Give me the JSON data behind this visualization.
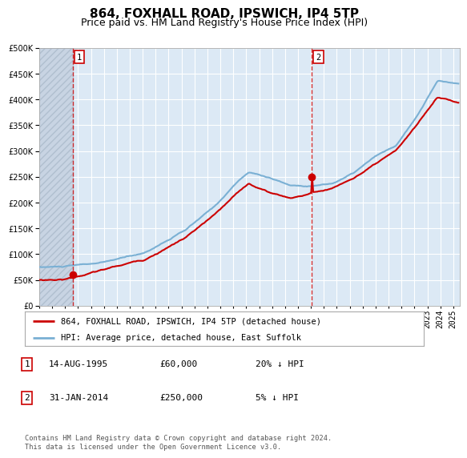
{
  "title": "864, FOXHALL ROAD, IPSWICH, IP4 5TP",
  "subtitle": "Price paid vs. HM Land Registry's House Price Index (HPI)",
  "ylim": [
    0,
    500000
  ],
  "yticks": [
    0,
    50000,
    100000,
    150000,
    200000,
    250000,
    300000,
    350000,
    400000,
    450000,
    500000
  ],
  "xlim_start": 1993.0,
  "xlim_end": 2025.5,
  "transactions": [
    {
      "id": 1,
      "date_label": "14-AUG-1995",
      "year": 1995.62,
      "price": 60000,
      "hpi_pct": "20% ↓ HPI"
    },
    {
      "id": 2,
      "date_label": "31-JAN-2014",
      "year": 2014.08,
      "price": 250000,
      "hpi_pct": "5% ↓ HPI"
    }
  ],
  "legend_entries": [
    {
      "label": "864, FOXHALL ROAD, IPSWICH, IP4 5TP (detached house)",
      "color": "#cc0000",
      "lw": 1.5
    },
    {
      "label": "HPI: Average price, detached house, East Suffolk",
      "color": "#7ab0d4",
      "lw": 1.5
    }
  ],
  "footer": "Contains HM Land Registry data © Crown copyright and database right 2024.\nThis data is licensed under the Open Government Licence v3.0.",
  "bg_color": "#dce9f5",
  "hatch_color": "#c8d4e3",
  "grid_color": "#ffffff",
  "title_fontsize": 11,
  "subtitle_fontsize": 9,
  "tick_fontsize": 7
}
